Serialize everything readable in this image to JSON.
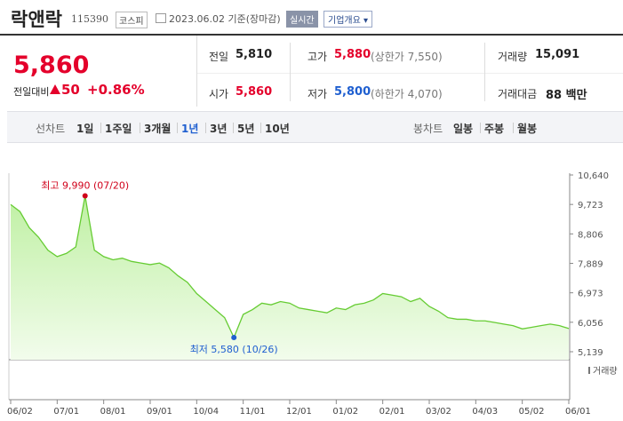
{
  "header": {
    "title": "락앤락",
    "code": "115390",
    "market": "코스피",
    "date": "2023.06.02 기준(장마감)",
    "realtime": "실시간",
    "company_button": "기업개요"
  },
  "price": {
    "current": "5,860",
    "change_label": "전일대비",
    "change": "50",
    "change_pct": "+0.86%",
    "color": "#e4002b"
  },
  "stats": [
    {
      "label": "전일",
      "value": "5,810",
      "color": "#222"
    },
    {
      "label": "고가",
      "value": "5,880",
      "sub": "(상한가 7,550)",
      "color": "#e4002b"
    },
    {
      "label": "거래량",
      "value": "15,091",
      "color": "#222"
    },
    {
      "label": "시가",
      "value": "5,860",
      "color": "#e4002b"
    },
    {
      "label": "저가",
      "value": "5,800",
      "sub": "(하한가 4,070)",
      "color": "#1f5fd0"
    },
    {
      "label": "거래대금",
      "value": "88 백만",
      "color": "#222"
    }
  ],
  "tabs": {
    "line_label": "선차트",
    "line_periods": [
      "1일",
      "1주일",
      "3개월",
      "1년",
      "3년",
      "5년",
      "10년"
    ],
    "selected": 3,
    "candle_label": "봉차트",
    "candle_periods": [
      "일봉",
      "주봉",
      "월봉"
    ]
  },
  "chart_data": {
    "type": "line",
    "color": "#66cc33",
    "categories": [
      "06/02",
      null,
      null,
      null,
      null,
      "07/01",
      null,
      null,
      null,
      null,
      "08/01",
      null,
      null,
      null,
      null,
      "09/01",
      null,
      null,
      null,
      null,
      "10/04",
      null,
      null,
      null,
      null,
      "11/01",
      null,
      null,
      null,
      null,
      "12/01",
      null,
      null,
      null,
      null,
      "01/02",
      null,
      null,
      null,
      null,
      "02/01",
      null,
      null,
      null,
      null,
      "03/02",
      null,
      null,
      null,
      null,
      "04/03",
      null,
      null,
      null,
      null,
      "05/02",
      null,
      null,
      null,
      null,
      "06/01"
    ],
    "values": [
      9720,
      9500,
      9000,
      8700,
      8300,
      8100,
      8200,
      8400,
      9990,
      8300,
      8100,
      8000,
      8050,
      7950,
      7900,
      7850,
      7900,
      7750,
      7500,
      7300,
      6950,
      6700,
      6450,
      6200,
      5580,
      6300,
      6450,
      6650,
      6600,
      6700,
      6650,
      6500,
      6450,
      6400,
      6350,
      6500,
      6450,
      6600,
      6650,
      6750,
      6950,
      6900,
      6850,
      6700,
      6800,
      6550,
      6400,
      6200,
      6150,
      6150,
      6100,
      6100,
      6050,
      6000,
      5950,
      5850,
      5900,
      5950,
      6000,
      5950,
      5860
    ],
    "ylim": [
      5139,
      10640
    ],
    "yticks": [
      {
        "value": 5139,
        "label": "5,139"
      },
      {
        "value": 6056,
        "label": "6,056"
      },
      {
        "value": 6973,
        "label": "6,973"
      },
      {
        "value": 7889,
        "label": "7,889"
      },
      {
        "value": 8806,
        "label": "8,806"
      },
      {
        "value": 9723,
        "label": "9,723"
      },
      {
        "value": 10640,
        "label": "10,640"
      }
    ],
    "max_label": "최고 9,990 (07/20)",
    "min_label": "최저 5,580 (10/26)",
    "max_color": "#d0021b",
    "min_color": "#1f5fd0",
    "volume_label": "거래량"
  }
}
